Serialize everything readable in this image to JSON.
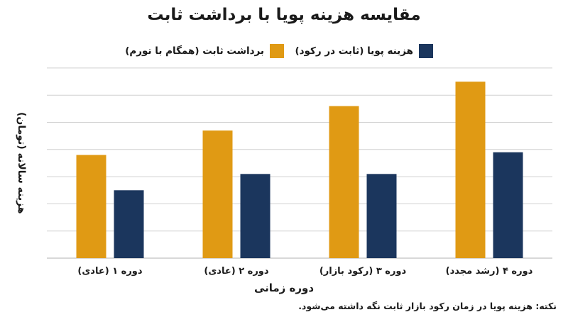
{
  "chart_data": {
    "type": "bar",
    "title": "مقایسه هزینه پویا با برداشت ثابت",
    "xlabel": "دوره زمانی",
    "ylabel": "هزینه سالانه (تومان)",
    "categories": [
      "دوره ۱ (عادی)",
      "دوره ۲ (عادی)",
      "دوره ۳ (رکود بازار)",
      "دوره ۴ (رشد مجدد)"
    ],
    "series": [
      {
        "name": "برداشت ثابت (همگام با تورم)",
        "color": "#E09A14",
        "values": [
          38,
          47,
          56,
          65
        ]
      },
      {
        "name": "هزینه پویا (ثابت در رکود)",
        "color": "#1B365D",
        "values": [
          25,
          31,
          31,
          39
        ]
      }
    ],
    "ylim": [
      0,
      70
    ],
    "grid": true,
    "gridlines": 7,
    "legend_position": "top"
  },
  "note": "نکته: هزینه پویا در زمان رکود بازار ثابت نگه داشته می‌شود."
}
